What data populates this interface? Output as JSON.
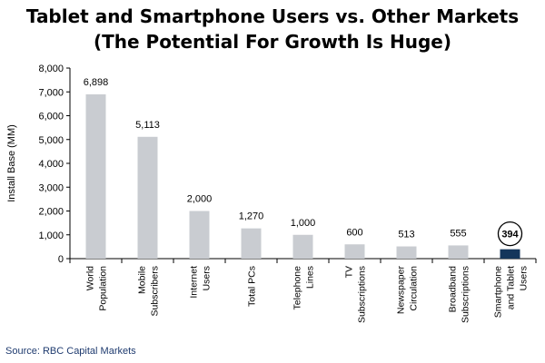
{
  "page": {
    "title_line1": "Tablet and Smartphone Users vs. Other Markets",
    "title_line2": "(The Potential For Growth Is Huge)",
    "source": "Source: RBC Capital Markets"
  },
  "colors": {
    "bar_default": "#c9ccd1",
    "bar_highlight": "#14365b",
    "axis": "#000000"
  },
  "chart_data": {
    "type": "bar",
    "title": "Tablet and Smartphone Users vs. Other Markets (The Potential For Growth Is Huge)",
    "xlabel": "",
    "ylabel": "Install Base (MM)",
    "ylim": [
      0,
      8000
    ],
    "yticks": [
      0,
      1000,
      2000,
      3000,
      4000,
      5000,
      6000,
      7000,
      8000
    ],
    "ytick_labels": [
      "0",
      "1,000",
      "2,000",
      "3,000",
      "4,000",
      "5,000",
      "6,000",
      "7,000",
      "8,000"
    ],
    "grid": false,
    "legend": "none",
    "categories": [
      [
        "World",
        "Population"
      ],
      [
        "Mobile",
        "Subscribers"
      ],
      [
        "Internet",
        "Users"
      ],
      [
        "Total PCs"
      ],
      [
        "Telephone",
        "Lines"
      ],
      [
        "TV",
        "Subscriptions"
      ],
      [
        "Newspaper",
        "Circulation"
      ],
      [
        "Broadband",
        "Subscriptions"
      ],
      [
        "Smartphone",
        "and Tablet",
        "Users"
      ]
    ],
    "values": [
      6898,
      5113,
      2000,
      1270,
      1000,
      600,
      513,
      555,
      394
    ],
    "value_labels": [
      "6,898",
      "5,113",
      "2,000",
      "1,270",
      "1,000",
      "600",
      "513",
      "555",
      "394"
    ],
    "highlight_index": 8
  }
}
